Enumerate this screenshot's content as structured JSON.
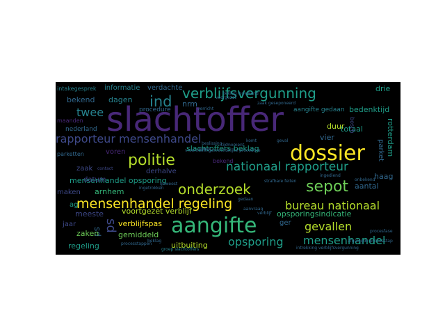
{
  "palette": {
    "background": "#000000",
    "yellow": "#fde725",
    "yellow_green": "#b5de2b",
    "green": "#6ece58",
    "aqua": "#35b779",
    "teal": "#1f9e89",
    "blue_teal": "#26828e",
    "blue": "#31688e",
    "indigo": "#3e4989",
    "purple": "#482878",
    "dark_purple": "#440154"
  },
  "words": [
    {
      "text": "slachtoffer",
      "color": "#482878"
    },
    {
      "text": "dossier",
      "color": "#fde725"
    },
    {
      "text": "aangifte",
      "color": "#35b779"
    },
    {
      "text": "mensenhandel regeling",
      "color": "#fde725"
    },
    {
      "text": "politie",
      "color": "#b5de2b"
    },
    {
      "text": "verblijfsvergunning",
      "color": "#1f9e89"
    },
    {
      "text": "nationaal rapporteur",
      "color": "#1f9e89"
    },
    {
      "text": "rapporteur mensenhandel",
      "color": "#3e4989"
    },
    {
      "text": "onderzoek",
      "color": "#b5de2b"
    },
    {
      "text": "sepot",
      "color": "#6ece58"
    },
    {
      "text": "ind",
      "color": "#26828e"
    },
    {
      "text": "bureau nationaal",
      "color": "#b5de2b"
    },
    {
      "text": "gevallen",
      "color": "#b5de2b"
    },
    {
      "text": "opsporing",
      "color": "#1f9e89"
    },
    {
      "text": "mensenhandel",
      "color": "#1f9e89"
    },
    {
      "text": "twee",
      "color": "#26828e"
    },
    {
      "text": "sd",
      "color": "#3e4989"
    },
    {
      "text": "sd",
      "color": "#31688e"
    },
    {
      "text": "slachtoffers beklag",
      "color": "#1f9e89"
    },
    {
      "text": "mensenhandel opsporing",
      "color": "#1f9e89"
    },
    {
      "text": "voortgezet verblijf",
      "color": "#b5de2b"
    },
    {
      "text": "verblijfspas",
      "color": "#fde725"
    },
    {
      "text": "uitbuiting",
      "color": "#b5de2b"
    },
    {
      "text": "arnhem",
      "color": "#35b779"
    },
    {
      "text": "zaken",
      "color": "#6ece58"
    },
    {
      "text": "gemiddeld",
      "color": "#6ece58"
    },
    {
      "text": "regeling",
      "color": "#1f9e89"
    },
    {
      "text": "opsporingsindicatie",
      "color": "#35b779"
    },
    {
      "text": "informatie",
      "color": "#26828e"
    },
    {
      "text": "verdachte",
      "color": "#31688e"
    },
    {
      "text": "bekend",
      "color": "#31688e"
    },
    {
      "text": "dagen",
      "color": "#26828e"
    },
    {
      "text": "nrm",
      "color": "#31688e"
    },
    {
      "text": "bedenktijd",
      "color": "#1f9e89"
    },
    {
      "text": "aangifte gedaan",
      "color": "#26828e"
    },
    {
      "text": "drie",
      "color": "#1f9e89"
    },
    {
      "text": "totaal",
      "color": "#1f9e89"
    },
    {
      "text": "duur",
      "color": "#b5de2b"
    },
    {
      "text": "vier",
      "color": "#31688e"
    },
    {
      "text": "aantal",
      "color": "#31688e"
    },
    {
      "text": "rotterdam",
      "color": "#1f9e89"
    },
    {
      "text": "parket",
      "color": "#31688e"
    },
    {
      "text": "haag",
      "color": "#31688e"
    },
    {
      "text": "meeste",
      "color": "#3e4989"
    },
    {
      "text": "jaar",
      "color": "#3e4989"
    },
    {
      "text": "datum",
      "color": "#3e4989"
    },
    {
      "text": "zaak",
      "color": "#3e4989"
    },
    {
      "text": "maken",
      "color": "#3e4989"
    },
    {
      "text": "derhalve",
      "color": "#3e4989"
    },
    {
      "text": "voren",
      "color": "#482878"
    },
    {
      "text": "procedure",
      "color": "#31688e"
    },
    {
      "text": "nederland",
      "color": "#31688e"
    },
    {
      "text": "maanden",
      "color": "#482878"
    },
    {
      "text": "parketten",
      "color": "#31688e"
    },
    {
      "text": "verricht",
      "color": "#31688e"
    },
    {
      "text": "intakegesprek",
      "color": "#26828e"
    },
    {
      "text": "beklag",
      "color": "#31688e"
    },
    {
      "text": "processtappen",
      "color": "#31688e"
    },
    {
      "text": "komt",
      "color": "#31688e"
    },
    {
      "text": "geval",
      "color": "#31688e"
    },
    {
      "text": "moment",
      "color": "#31688e"
    },
    {
      "text": "beslissing",
      "color": "#31688e"
    },
    {
      "text": "contact",
      "color": "#3e4989"
    },
    {
      "text": "bosch",
      "color": "#3e4989"
    },
    {
      "text": "gedaan",
      "color": "#31688e"
    },
    {
      "text": "tijd",
      "color": "#31688e"
    },
    {
      "text": "stond",
      "color": "#31688e"
    },
    {
      "text": "zaak geseponeerd",
      "color": "#31688e"
    },
    {
      "text": "groep slachtoffers",
      "color": "#26828e"
    },
    {
      "text": "voorgezet",
      "color": "#31688e"
    },
    {
      "text": "afgelegde processtap",
      "color": "#31688e"
    },
    {
      "text": "intrekking verblijfsvergunning",
      "color": "#31688e"
    },
    {
      "text": "beklag ingediend",
      "color": "#31688e"
    },
    {
      "text": "geweest",
      "color": "#31688e"
    },
    {
      "text": "ingediend",
      "color": "#31688e"
    },
    {
      "text": "onbekend",
      "color": "#31688e"
    },
    {
      "text": "procesfase",
      "color": "#31688e"
    },
    {
      "text": "strafbare feiten",
      "color": "#31688e"
    },
    {
      "text": "vreemdelingenrechtelijke procedure",
      "color": "#31688e"
    },
    {
      "text": "ag",
      "color": "#1f9e89"
    },
    {
      "text": "ger",
      "color": "#31688e"
    },
    {
      "text": "bekend",
      "color": "#482878"
    },
    {
      "text": "aanvraag",
      "color": "#31688e"
    },
    {
      "text": "ingetrokken",
      "color": "#31688e"
    },
    {
      "text": "verblijf",
      "color": "#31688e"
    }
  ]
}
